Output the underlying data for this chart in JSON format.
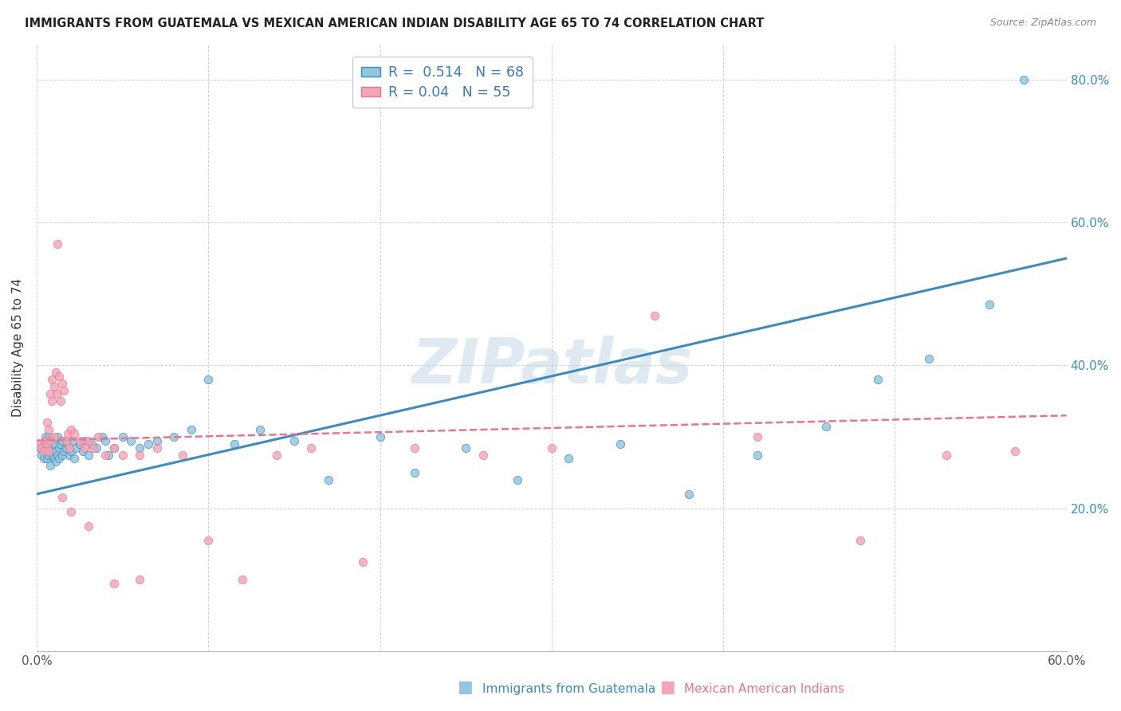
{
  "title": "IMMIGRANTS FROM GUATEMALA VS MEXICAN AMERICAN INDIAN DISABILITY AGE 65 TO 74 CORRELATION CHART",
  "source": "Source: ZipAtlas.com",
  "ylabel": "Disability Age 65 to 74",
  "xlim": [
    0.0,
    0.6
  ],
  "ylim": [
    0.0,
    0.85
  ],
  "color_blue": "#92c5de",
  "color_pink": "#f4a5b8",
  "color_blue_line": "#3a8bbf",
  "color_pink_line": "#e8758a",
  "R1": 0.514,
  "N1": 68,
  "R2": 0.04,
  "N2": 55,
  "legend_label1": "Immigrants from Guatemala",
  "legend_label2": "Mexican American Indians",
  "watermark": "ZIPatlas",
  "blue_line_x0": 0.0,
  "blue_line_y0": 0.22,
  "blue_line_x1": 0.6,
  "blue_line_y1": 0.55,
  "pink_line_x0": 0.0,
  "pink_line_y0": 0.295,
  "pink_line_x1": 0.6,
  "pink_line_y1": 0.33,
  "blue_scatter_x": [
    0.002,
    0.003,
    0.004,
    0.004,
    0.005,
    0.005,
    0.006,
    0.006,
    0.007,
    0.007,
    0.008,
    0.008,
    0.009,
    0.009,
    0.01,
    0.01,
    0.011,
    0.011,
    0.012,
    0.012,
    0.013,
    0.013,
    0.014,
    0.015,
    0.015,
    0.016,
    0.017,
    0.018,
    0.019,
    0.02,
    0.021,
    0.022,
    0.023,
    0.025,
    0.027,
    0.028,
    0.03,
    0.032,
    0.035,
    0.038,
    0.04,
    0.042,
    0.045,
    0.05,
    0.055,
    0.06,
    0.065,
    0.07,
    0.08,
    0.09,
    0.1,
    0.115,
    0.13,
    0.15,
    0.17,
    0.2,
    0.22,
    0.25,
    0.28,
    0.31,
    0.34,
    0.38,
    0.42,
    0.46,
    0.49,
    0.52,
    0.555,
    0.575
  ],
  "blue_scatter_y": [
    0.285,
    0.275,
    0.29,
    0.27,
    0.3,
    0.28,
    0.295,
    0.27,
    0.3,
    0.275,
    0.285,
    0.26,
    0.295,
    0.275,
    0.29,
    0.27,
    0.28,
    0.265,
    0.3,
    0.275,
    0.285,
    0.27,
    0.29,
    0.295,
    0.275,
    0.28,
    0.285,
    0.29,
    0.275,
    0.28,
    0.295,
    0.27,
    0.285,
    0.29,
    0.28,
    0.295,
    0.275,
    0.29,
    0.285,
    0.3,
    0.295,
    0.275,
    0.285,
    0.3,
    0.295,
    0.285,
    0.29,
    0.295,
    0.3,
    0.31,
    0.38,
    0.29,
    0.31,
    0.295,
    0.24,
    0.3,
    0.25,
    0.285,
    0.24,
    0.27,
    0.29,
    0.22,
    0.275,
    0.315,
    0.38,
    0.41,
    0.485,
    0.8
  ],
  "pink_scatter_x": [
    0.002,
    0.003,
    0.004,
    0.005,
    0.006,
    0.006,
    0.007,
    0.007,
    0.008,
    0.008,
    0.009,
    0.009,
    0.01,
    0.01,
    0.011,
    0.012,
    0.013,
    0.014,
    0.015,
    0.016,
    0.017,
    0.018,
    0.019,
    0.02,
    0.022,
    0.025,
    0.028,
    0.03,
    0.033,
    0.036,
    0.04,
    0.045,
    0.05,
    0.06,
    0.07,
    0.085,
    0.1,
    0.12,
    0.14,
    0.16,
    0.19,
    0.22,
    0.26,
    0.3,
    0.36,
    0.42,
    0.48,
    0.53,
    0.57,
    0.012,
    0.015,
    0.02,
    0.03,
    0.045,
    0.06
  ],
  "pink_scatter_y": [
    0.29,
    0.285,
    0.28,
    0.295,
    0.32,
    0.29,
    0.31,
    0.28,
    0.36,
    0.295,
    0.38,
    0.35,
    0.37,
    0.3,
    0.39,
    0.36,
    0.385,
    0.35,
    0.375,
    0.365,
    0.295,
    0.305,
    0.285,
    0.31,
    0.305,
    0.295,
    0.285,
    0.295,
    0.285,
    0.3,
    0.275,
    0.285,
    0.275,
    0.275,
    0.285,
    0.275,
    0.155,
    0.1,
    0.275,
    0.285,
    0.125,
    0.285,
    0.275,
    0.285,
    0.47,
    0.3,
    0.155,
    0.275,
    0.28,
    0.57,
    0.215,
    0.195,
    0.175,
    0.095,
    0.1
  ]
}
